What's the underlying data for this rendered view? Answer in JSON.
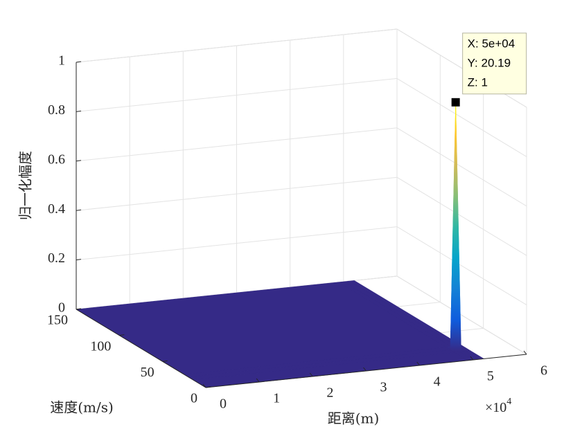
{
  "chart_data": {
    "type": "surface3d",
    "xlabel": "距离(m)",
    "ylabel": "速度(m/s)",
    "zlabel": "归一化幅度",
    "x_multiplier": {
      "base": "×10",
      "exponent": "4"
    },
    "xlim": [
      0,
      60000
    ],
    "ylim": [
      0,
      150
    ],
    "zlim": [
      0,
      1
    ],
    "xticks": [
      {
        "value": 0,
        "label": "0"
      },
      {
        "value": 10000,
        "label": "1"
      },
      {
        "value": 20000,
        "label": "2"
      },
      {
        "value": 30000,
        "label": "3"
      },
      {
        "value": 40000,
        "label": "4"
      },
      {
        "value": 50000,
        "label": "5"
      },
      {
        "value": 60000,
        "label": "6"
      }
    ],
    "yticks": [
      0,
      50,
      100,
      150
    ],
    "zticks": [
      0,
      0.2,
      0.4,
      0.6,
      0.8,
      1
    ],
    "grid": true,
    "colormap": [
      "#352a87",
      "#0f5cdd",
      "#1481d6",
      "#06a4ca",
      "#2eb7a4",
      "#87bf77",
      "#d1bb59",
      "#fec832",
      "#f9fb0e"
    ],
    "x": [
      0,
      49000,
      50000,
      51000,
      52000
    ],
    "y": [
      0,
      15,
      20.19,
      25,
      150
    ],
    "z": [
      [
        0,
        0,
        0,
        0,
        0
      ],
      [
        0,
        0,
        0,
        0,
        0
      ],
      [
        0,
        0,
        1,
        0,
        0
      ],
      [
        0,
        0,
        0,
        0,
        0
      ],
      [
        0,
        0,
        0,
        0,
        0
      ]
    ],
    "datatip": {
      "x": 50000,
      "y": 20.19,
      "z": 1,
      "labels": [
        "X: 5e+04",
        "Y: 20.19",
        "Z: 1"
      ]
    }
  }
}
